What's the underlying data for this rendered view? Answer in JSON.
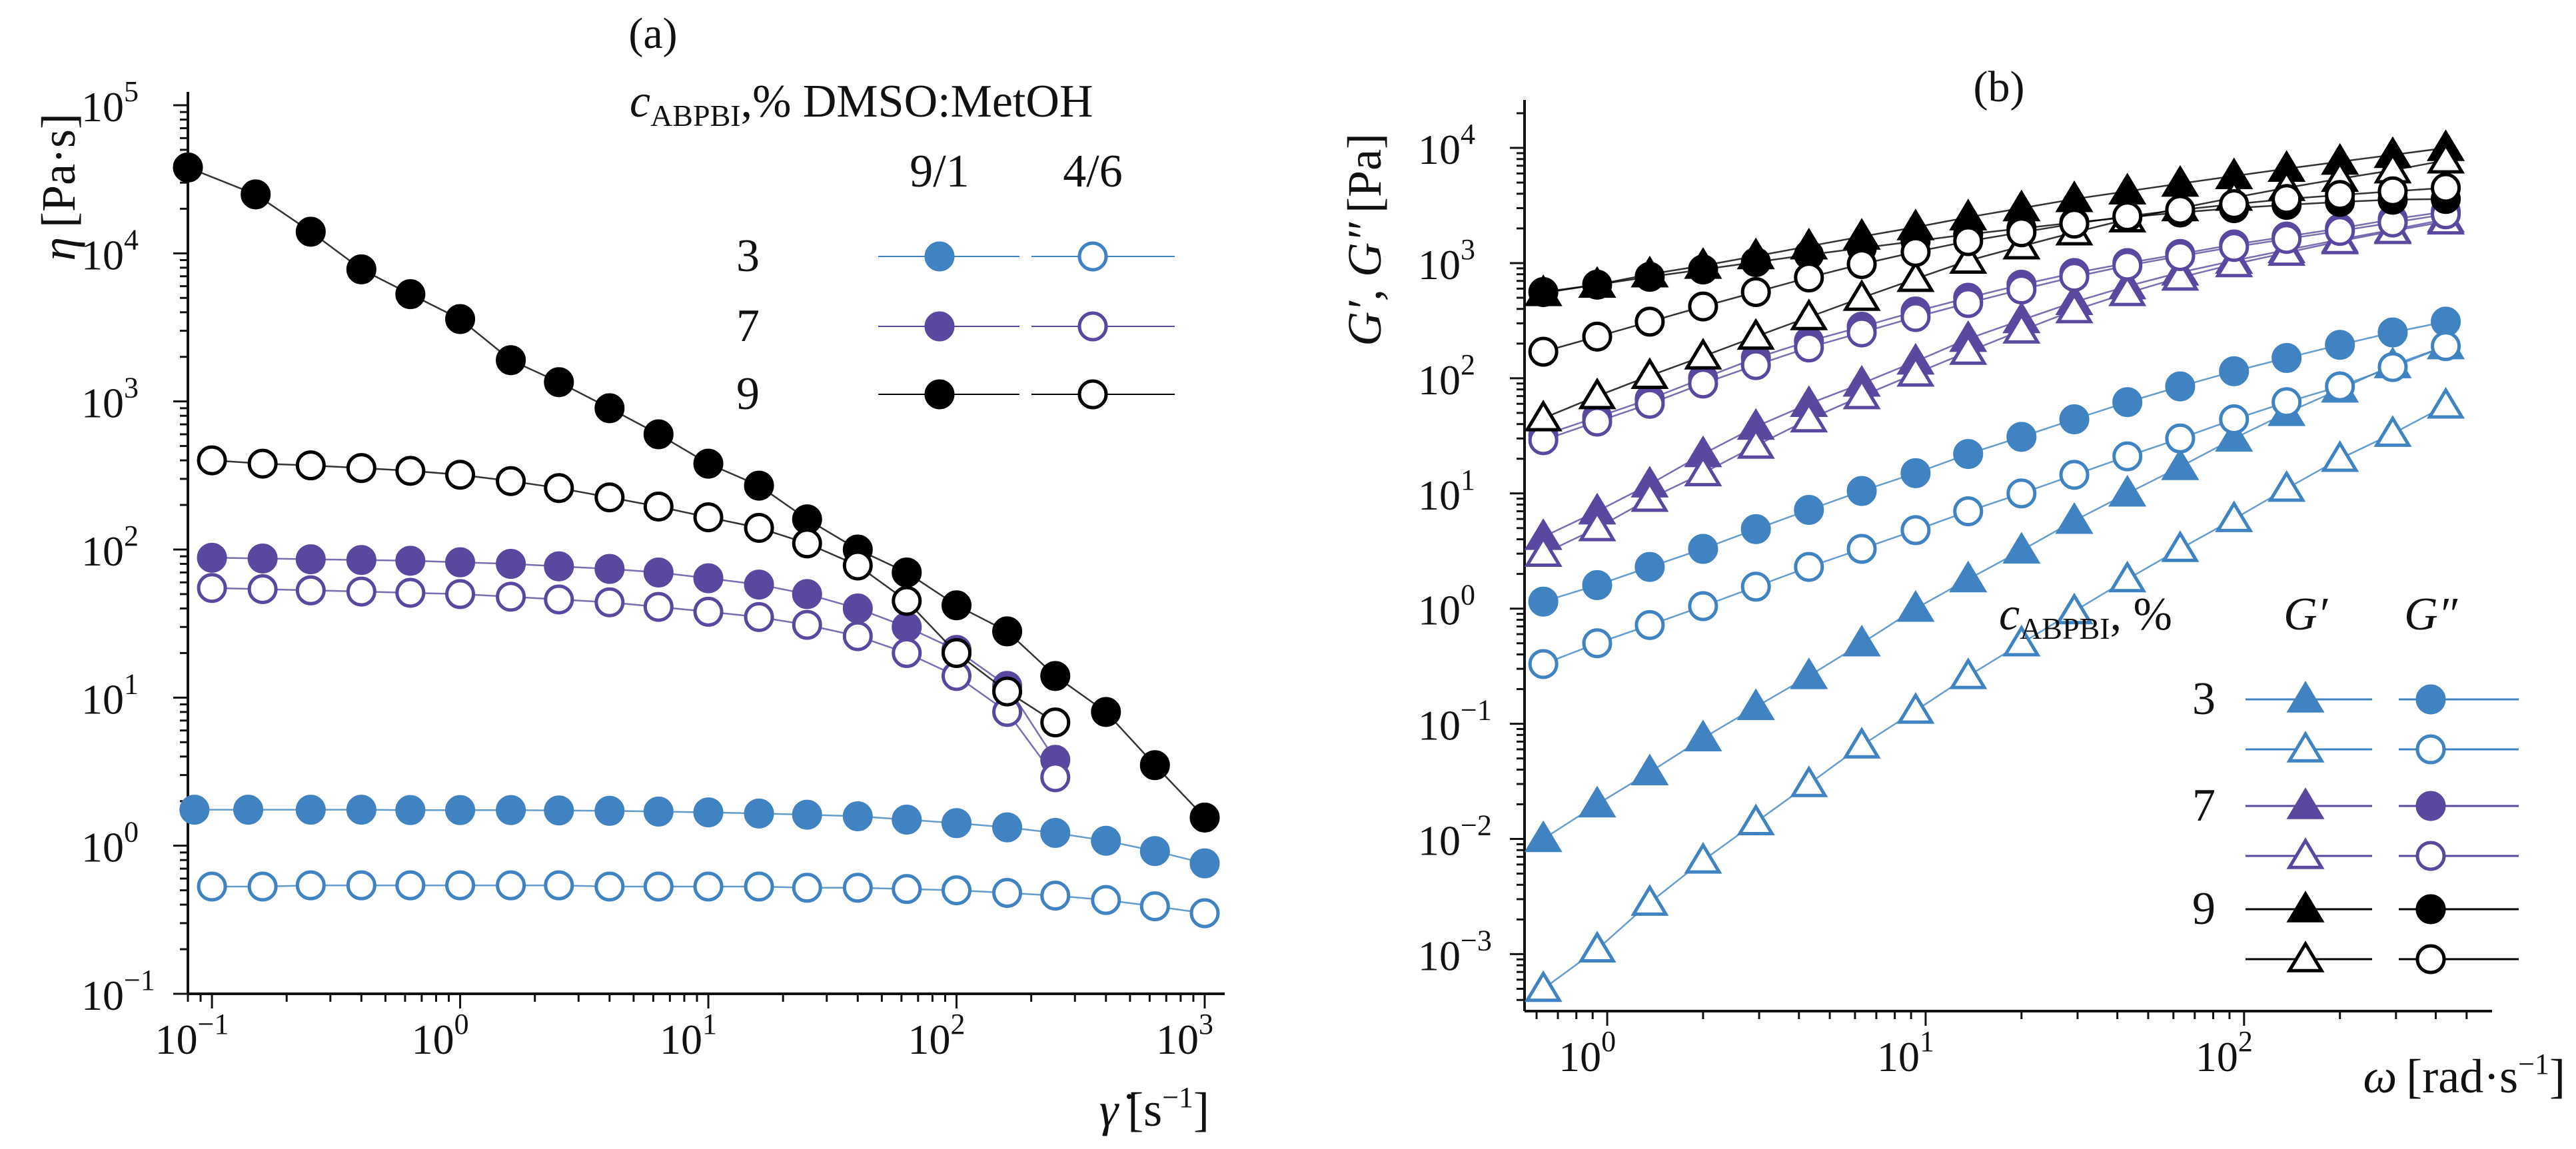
{
  "colors": {
    "blue": "#3f83c2",
    "purple": "#5a48a0",
    "black": "#000000",
    "axis": "#111111"
  },
  "chart_data": [
    {
      "id": "a",
      "type": "scatter",
      "panel_label": "(a)",
      "xscale": "log",
      "yscale": "log",
      "xlim": [
        0.08,
        1000
      ],
      "ylim": [
        0.1,
        100000
      ],
      "xlabel": {
        "symbol": "γ̇",
        "unit_pre": "[s",
        "unit_exp": "−1",
        "unit_post": "]"
      },
      "ylabel": {
        "symbol": "η",
        "unit": "[Pa·s]"
      },
      "xticks": [
        {
          "base": "10",
          "exp": "−1",
          "value": 0.1
        },
        {
          "base": "10",
          "exp": "0",
          "value": 1
        },
        {
          "base": "10",
          "exp": "1",
          "value": 10
        },
        {
          "base": "10",
          "exp": "2",
          "value": 100
        },
        {
          "base": "10",
          "exp": "3",
          "value": 1000
        }
      ],
      "yticks": [
        {
          "base": "10",
          "exp": "−1",
          "value": 0.1
        },
        {
          "base": "10",
          "exp": "0",
          "value": 1
        },
        {
          "base": "10",
          "exp": "1",
          "value": 10
        },
        {
          "base": "10",
          "exp": "2",
          "value": 100
        },
        {
          "base": "10",
          "exp": "3",
          "value": 1000
        },
        {
          "base": "10",
          "exp": "4",
          "value": 10000
        },
        {
          "base": "10",
          "exp": "5",
          "value": 100000
        }
      ],
      "legend": {
        "title_main": "c",
        "title_sub": "ABPBI",
        "title_rest": ",% DMSO:MetOH",
        "col_headers": [
          "9/1",
          "4/6"
        ],
        "rows": [
          {
            "label": "3",
            "color": "blue"
          },
          {
            "label": "7",
            "color": "purple"
          },
          {
            "label": "9",
            "color": "black"
          }
        ]
      },
      "series": [
        {
          "name": "3% 9/1",
          "color": "blue",
          "marker": "circle",
          "filled": true,
          "x": [
            0.085,
            0.14,
            0.25,
            0.4,
            0.63,
            1,
            1.6,
            2.5,
            4,
            6.3,
            10,
            16,
            25,
            40,
            63,
            100,
            160,
            250,
            400,
            630,
            1000
          ],
          "y": [
            1.75,
            1.75,
            1.75,
            1.75,
            1.74,
            1.74,
            1.74,
            1.73,
            1.72,
            1.7,
            1.68,
            1.65,
            1.62,
            1.58,
            1.5,
            1.42,
            1.33,
            1.22,
            1.08,
            0.92,
            0.76
          ]
        },
        {
          "name": "3% 4/6",
          "color": "blue",
          "marker": "circle",
          "filled": false,
          "x": [
            0.1,
            0.16,
            0.25,
            0.4,
            0.63,
            1,
            1.6,
            2.5,
            4,
            6.3,
            10,
            16,
            25,
            40,
            63,
            100,
            160,
            250,
            400,
            630,
            1000
          ],
          "y": [
            0.53,
            0.53,
            0.54,
            0.54,
            0.54,
            0.54,
            0.54,
            0.54,
            0.53,
            0.53,
            0.53,
            0.53,
            0.52,
            0.52,
            0.51,
            0.5,
            0.48,
            0.46,
            0.43,
            0.39,
            0.35
          ]
        },
        {
          "name": "7% 9/1",
          "color": "purple",
          "marker": "circle",
          "filled": true,
          "x": [
            0.1,
            0.16,
            0.25,
            0.4,
            0.63,
            1,
            1.6,
            2.5,
            4,
            6.3,
            10,
            16,
            25,
            40,
            63,
            100,
            160,
            250
          ],
          "y": [
            88,
            87,
            86,
            85,
            84,
            82,
            80,
            77,
            74,
            70,
            64,
            58,
            50,
            40,
            30,
            21,
            12,
            3.8
          ]
        },
        {
          "name": "7% 4/6",
          "color": "purple",
          "marker": "circle",
          "filled": false,
          "x": [
            0.1,
            0.16,
            0.25,
            0.4,
            0.63,
            1,
            1.6,
            2.5,
            4,
            6.3,
            10,
            16,
            25,
            40,
            63,
            100,
            160,
            250
          ],
          "y": [
            55,
            54,
            53,
            52,
            51,
            50,
            48,
            46,
            44,
            41,
            38,
            35,
            31,
            26,
            20,
            14,
            8,
            2.9
          ]
        },
        {
          "name": "9% 9/1",
          "color": "black",
          "marker": "circle",
          "filled": true,
          "x": [
            0.08,
            0.15,
            0.25,
            0.4,
            0.63,
            1,
            1.6,
            2.5,
            4,
            6.3,
            10,
            16,
            25,
            40,
            63,
            100,
            160,
            250,
            400,
            630,
            1000
          ],
          "y": [
            38000,
            25000,
            14000,
            7800,
            5300,
            3600,
            1900,
            1350,
            900,
            600,
            380,
            270,
            160,
            100,
            70,
            42,
            28,
            14,
            8,
            3.5,
            1.55
          ]
        },
        {
          "name": "9% 4/6",
          "color": "black",
          "marker": "circle",
          "filled": false,
          "x": [
            0.1,
            0.16,
            0.25,
            0.4,
            0.63,
            1,
            1.6,
            2.5,
            4,
            6.3,
            10,
            16,
            25,
            40,
            63,
            100,
            160,
            250
          ],
          "y": [
            400,
            380,
            370,
            355,
            340,
            320,
            290,
            260,
            225,
            195,
            165,
            140,
            110,
            78,
            45,
            20,
            11,
            6.8
          ]
        }
      ]
    },
    {
      "id": "b",
      "type": "scatter",
      "panel_label": "(b)",
      "xscale": "log",
      "yscale": "log",
      "xlim": [
        0.55,
        520
      ],
      "ylim": [
        0.00032,
        20000
      ],
      "xlabel": {
        "symbol": "ω",
        "unit_pre": "[rad·s",
        "unit_exp": "−1",
        "unit_post": "]"
      },
      "ylabel": {
        "symbol": "G′, G″",
        "unit": "[Pa]"
      },
      "xticks": [
        {
          "base": "10",
          "exp": "0",
          "value": 1
        },
        {
          "base": "10",
          "exp": "1",
          "value": 10
        },
        {
          "base": "10",
          "exp": "2",
          "value": 100
        }
      ],
      "yticks": [
        {
          "base": "10",
          "exp": "−3",
          "value": 0.001
        },
        {
          "base": "10",
          "exp": "−2",
          "value": 0.01
        },
        {
          "base": "10",
          "exp": "−1",
          "value": 0.1
        },
        {
          "base": "10",
          "exp": "0",
          "value": 1
        },
        {
          "base": "10",
          "exp": "1",
          "value": 10
        },
        {
          "base": "10",
          "exp": "2",
          "value": 100
        },
        {
          "base": "10",
          "exp": "3",
          "value": 1000
        },
        {
          "base": "10",
          "exp": "4",
          "value": 10000
        }
      ],
      "legend": {
        "title_main": "c",
        "title_sub": "ABPBI",
        "title_rest": ", %",
        "col_headers": [
          "G′",
          "G″"
        ],
        "rows": [
          {
            "label": "3",
            "color": "blue"
          },
          {
            "label": "7",
            "color": "purple"
          },
          {
            "label": "9",
            "color": "black"
          }
        ]
      },
      "x": [
        0.63,
        0.93,
        1.36,
        2,
        2.93,
        4.3,
        6.3,
        9.3,
        13.6,
        20,
        29.3,
        43,
        63,
        93,
        136,
        200,
        293,
        430
      ],
      "series": [
        {
          "name": "3% 9/1 G′",
          "color": "blue",
          "marker": "triangle",
          "filled": true,
          "y": [
            0.01,
            0.02,
            0.038,
            0.075,
            0.14,
            0.26,
            0.5,
            1.0,
            1.8,
            3.2,
            5.8,
            10,
            17,
            30,
            50,
            80,
            130,
            190
          ]
        },
        {
          "name": "3% 4/6 G′",
          "color": "blue",
          "marker": "triangle",
          "filled": false,
          "y": [
            0.0005,
            0.0011,
            0.0028,
            0.0065,
            0.014,
            0.03,
            0.065,
            0.13,
            0.26,
            0.5,
            0.95,
            1.8,
            3.3,
            6,
            11,
            20,
            33,
            58
          ]
        },
        {
          "name": "3% 9/1 G″",
          "color": "blue",
          "marker": "circle",
          "filled": true,
          "y": [
            1.15,
            1.6,
            2.3,
            3.3,
            4.9,
            7.2,
            10.5,
            15,
            22,
            31,
            44,
            62,
            85,
            115,
            150,
            195,
            250,
            310
          ]
        },
        {
          "name": "3% 4/6 G″",
          "color": "blue",
          "marker": "circle",
          "filled": false,
          "y": [
            0.33,
            0.5,
            0.72,
            1.05,
            1.55,
            2.3,
            3.3,
            4.8,
            7,
            10,
            14.5,
            21,
            30,
            44,
            62,
            85,
            125,
            190
          ]
        },
        {
          "name": "7% 9/1 G′",
          "color": "purple",
          "marker": "triangle",
          "filled": true,
          "y": [
            4.2,
            7,
            12,
            22,
            38,
            60,
            90,
            140,
            220,
            320,
            460,
            630,
            830,
            1050,
            1300,
            1600,
            1950,
            2400
          ]
        },
        {
          "name": "7% 4/6 G′",
          "color": "purple",
          "marker": "triangle",
          "filled": false,
          "y": [
            3,
            5,
            9,
            15,
            26,
            44,
            70,
            110,
            170,
            260,
            390,
            550,
            750,
            980,
            1230,
            1550,
            1900,
            2300
          ]
        },
        {
          "name": "7% 9/1 G″",
          "color": "purple",
          "marker": "circle",
          "filled": true,
          "y": [
            32,
            46,
            66,
            100,
            150,
            210,
            280,
            380,
            500,
            650,
            820,
            1000,
            1200,
            1450,
            1700,
            2000,
            2400,
            2800
          ]
        },
        {
          "name": "7% 4/6 G″",
          "color": "purple",
          "marker": "circle",
          "filled": false,
          "y": [
            29,
            42,
            60,
            90,
            130,
            185,
            250,
            340,
            450,
            590,
            760,
            950,
            1150,
            1380,
            1620,
            1900,
            2250,
            2650
          ]
        },
        {
          "name": "9% 9/1 G′",
          "color": "black",
          "marker": "triangle",
          "filled": true,
          "y": [
            550,
            650,
            800,
            950,
            1150,
            1400,
            1700,
            2050,
            2500,
            3000,
            3600,
            4200,
            4900,
            5700,
            6600,
            7600,
            8700,
            10000
          ]
        },
        {
          "name": "9% 4/6 G′",
          "color": "black",
          "marker": "triangle",
          "filled": false,
          "y": [
            45,
            70,
            105,
            155,
            230,
            340,
            500,
            730,
            1050,
            1400,
            1850,
            2400,
            3000,
            3700,
            4500,
            5400,
            6400,
            7800
          ]
        },
        {
          "name": "9% 9/1 G″",
          "color": "black",
          "marker": "circle",
          "filled": true,
          "y": [
            560,
            650,
            760,
            880,
            1020,
            1180,
            1350,
            1550,
            1780,
            2000,
            2250,
            2500,
            2750,
            3000,
            3200,
            3400,
            3550,
            3600
          ]
        },
        {
          "name": "9% 4/6 G″",
          "color": "black",
          "marker": "circle",
          "filled": false,
          "y": [
            170,
            230,
            310,
            420,
            560,
            750,
            980,
            1250,
            1550,
            1850,
            2200,
            2550,
            2900,
            3250,
            3600,
            3900,
            4200,
            4500
          ]
        }
      ]
    }
  ]
}
